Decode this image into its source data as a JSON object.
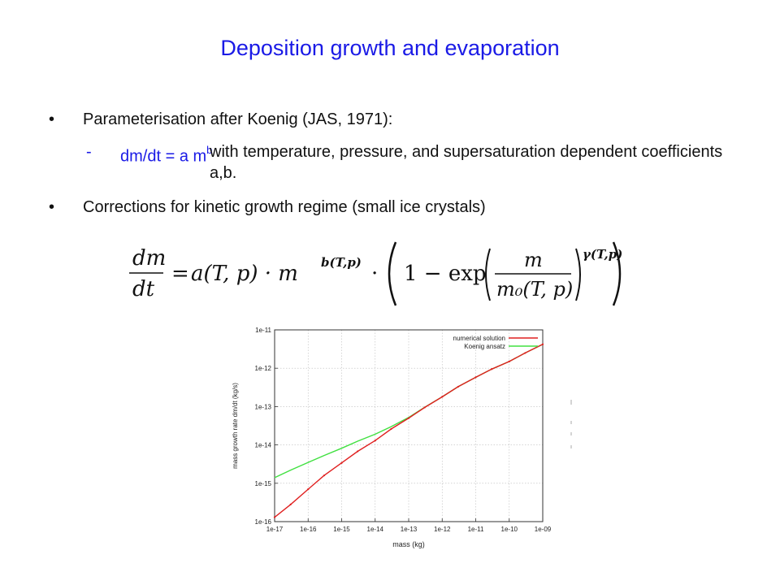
{
  "slide": {
    "title": "Deposition growth and evaporation",
    "bullets": [
      {
        "marker": "•",
        "text": "Parameterisation after Koenig (JAS, 1971):"
      },
      {
        "marker": "•",
        "text": "Corrections for kinetic growth regime (small ice crystals)"
      }
    ],
    "sub_item": {
      "marker": "-",
      "lhs": "dm/dt = a m",
      "exponent": "b",
      "rest": "with temperature, pressure,  and supersaturation dependent coefficients a,b."
    },
    "colors": {
      "title": "#1a1ae6",
      "sub_lhs": "#1a1ae6",
      "text": "#111111"
    }
  },
  "formula": {
    "lhs_num": "dm",
    "lhs_den": "dt",
    "equals": "=",
    "term_a": "a(T, p) · m",
    "exp_b": "b(T,p)",
    "dot": "·",
    "one_minus_exp": "1 − exp",
    "frac_num": "m",
    "frac_den": "m₀(T, p)",
    "exp_gamma": "γ(T,p)"
  },
  "chart_data": {
    "type": "line",
    "xlabel": "mass (kg)",
    "ylabel": "mass growth rate dm/dt (kg/s)",
    "x_scale": "log",
    "y_scale": "log",
    "xlim": [
      1e-17,
      1e-09
    ],
    "ylim": [
      1e-16,
      1e-11
    ],
    "grid": true,
    "legend_position": "top-right",
    "x_ticks": [
      "1e-17",
      "1e-16",
      "1e-15",
      "1e-14",
      "1e-13",
      "1e-12",
      "1e-11",
      "1e-10",
      "1e-09"
    ],
    "y_ticks": [
      "1e-16",
      "1e-15",
      "1e-14",
      "1e-13",
      "1e-12",
      "1e-11"
    ],
    "series": [
      {
        "name": "numerical solution",
        "color": "#e02020",
        "x": [
          1e-17,
          3e-17,
          1e-16,
          3e-16,
          1e-15,
          3e-15,
          1e-14,
          3e-14,
          1e-13,
          3e-13,
          1e-12,
          3e-12,
          1e-11,
          3e-11,
          1e-10,
          3e-10,
          1e-09
        ],
        "y": [
          1.3e-16,
          2.8e-16,
          7e-16,
          1.6e-15,
          3.4e-15,
          6.8e-15,
          1.3e-14,
          2.6e-14,
          5e-14,
          9.5e-14,
          1.8e-13,
          3.3e-13,
          5.8e-13,
          9.5e-13,
          1.5e-12,
          2.5e-12,
          4.2e-12
        ]
      },
      {
        "name": "Koenig ansatz",
        "color": "#40e040",
        "x": [
          1e-17,
          3e-17,
          1e-16,
          3e-16,
          1e-15,
          3e-15,
          1e-14,
          3e-14,
          1e-13,
          3e-13,
          1e-12,
          3e-12,
          1e-11,
          3e-11,
          1e-10,
          3e-10,
          1e-09
        ],
        "y": [
          1.4e-15,
          2.2e-15,
          3.5e-15,
          5.3e-15,
          8.2e-15,
          1.25e-14,
          1.9e-14,
          3e-14,
          5.2e-14,
          9.6e-14,
          1.8e-13,
          3.3e-13,
          5.8e-13,
          9.5e-13,
          1.5e-12,
          2.5e-12,
          4.2e-12
        ]
      }
    ]
  }
}
